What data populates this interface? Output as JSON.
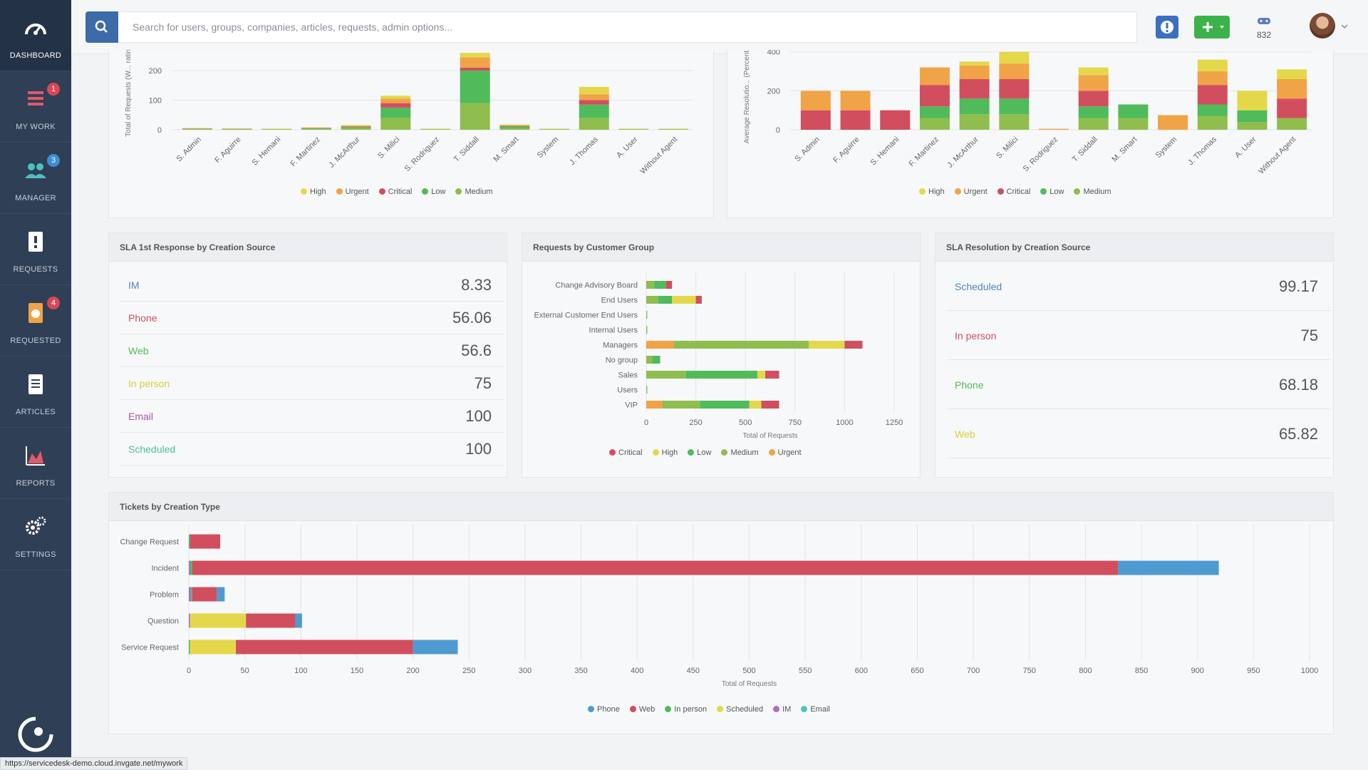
{
  "sidebar": {
    "items": [
      {
        "label": "DASHBOARD",
        "icon": "dashboard-gauge-icon",
        "badge": ""
      },
      {
        "label": "MY WORK",
        "icon": "list-icon",
        "badge": "1"
      },
      {
        "label": "MANAGER",
        "icon": "people-icon",
        "badge": "3"
      },
      {
        "label": "REQUESTS",
        "icon": "requests-doc-icon",
        "badge": ""
      },
      {
        "label": "REQUESTED",
        "icon": "requested-doc-icon",
        "badge": "4"
      },
      {
        "label": "ARTICLES",
        "icon": "articles-doc-icon",
        "badge": ""
      },
      {
        "label": "REPORTS",
        "icon": "reports-chart-icon",
        "badge": ""
      },
      {
        "label": "SETTINGS",
        "icon": "gears-icon",
        "badge": ""
      }
    ]
  },
  "topbar": {
    "search_placeholder": "Search for users, groups, companies, articles, requests, admin options...",
    "points": "832"
  },
  "colors": {
    "critical": "#d14e5e",
    "high": "#e4d84a",
    "urgent": "#f0a347",
    "low": "#4fbb5a",
    "medium": "#8fbd4e",
    "phone": "#4f9ad0",
    "web": "#d14e5e",
    "in_person": "#4fbb5a",
    "scheduled": "#e4d84a",
    "im": "#a86fc2",
    "email": "#4fc1c1"
  },
  "chart_top_left": {
    "type": "bar",
    "ylabel": "Total of Requests (W... rating)",
    "yticks": [
      "200",
      "100",
      "0"
    ],
    "ymax": 270,
    "categories": [
      "S. Admin",
      "F. Aguirre",
      "S. Hemani",
      "F. Martinez",
      "J. McArthur",
      "S. Milici",
      "S. Rodriguez",
      "T. Siddall",
      "M. Smart",
      "System",
      "J. Thomas",
      "A. User",
      "Without Agent"
    ],
    "series": [
      {
        "name": "Medium",
        "color": "#8fbd4e",
        "values": [
          2,
          1,
          1,
          3,
          5,
          40,
          1,
          90,
          5,
          1,
          40,
          1,
          1
        ]
      },
      {
        "name": "Low",
        "color": "#4fbb5a",
        "values": [
          1,
          1,
          1,
          2,
          4,
          35,
          1,
          110,
          6,
          1,
          45,
          1,
          1
        ]
      },
      {
        "name": "Critical",
        "color": "#d14e5e",
        "values": [
          1,
          1,
          0,
          1,
          2,
          15,
          0,
          10,
          2,
          0,
          15,
          0,
          0
        ]
      },
      {
        "name": "Urgent",
        "color": "#f0a347",
        "values": [
          1,
          1,
          1,
          1,
          2,
          15,
          1,
          35,
          2,
          1,
          20,
          1,
          1
        ]
      },
      {
        "name": "High",
        "color": "#e4d84a",
        "values": [
          1,
          1,
          1,
          1,
          3,
          10,
          1,
          15,
          3,
          1,
          25,
          1,
          1
        ]
      }
    ],
    "legend": [
      "High",
      "Urgent",
      "Critical",
      "Low",
      "Medium"
    ]
  },
  "chart_top_right": {
    "type": "bar",
    "ylabel": "Average Resolutio... (Percentage)",
    "yticks": [
      "400",
      "200",
      "0"
    ],
    "ymax": 410,
    "categories": [
      "S. Admin",
      "F. Aguirre",
      "S. Hemani",
      "F. Martinez",
      "J. McArthur",
      "S. Milici",
      "S. Rodriguez",
      "T. Siddall",
      "M. Smart",
      "System",
      "J. Thomas",
      "A. User",
      "Without Agent"
    ],
    "series": [
      {
        "name": "Medium",
        "color": "#8fbd4e",
        "values": [
          0,
          0,
          0,
          60,
          80,
          80,
          0,
          60,
          60,
          0,
          70,
          40,
          60
        ]
      },
      {
        "name": "Low",
        "color": "#4fbb5a",
        "values": [
          0,
          0,
          0,
          60,
          80,
          80,
          0,
          60,
          70,
          0,
          60,
          60,
          0
        ]
      },
      {
        "name": "Critical",
        "color": "#d14e5e",
        "values": [
          100,
          100,
          100,
          110,
          100,
          100,
          0,
          80,
          0,
          0,
          100,
          0,
          100
        ]
      },
      {
        "name": "Urgent",
        "color": "#f0a347",
        "values": [
          100,
          100,
          0,
          90,
          70,
          80,
          5,
          80,
          0,
          75,
          70,
          0,
          100
        ]
      },
      {
        "name": "High",
        "color": "#e4d84a",
        "values": [
          0,
          0,
          0,
          0,
          20,
          60,
          0,
          40,
          0,
          0,
          60,
          100,
          50
        ]
      }
    ],
    "legend": [
      "High",
      "Urgent",
      "Critical",
      "Low",
      "Medium"
    ]
  },
  "sla_first": {
    "title": "SLA 1st Response by Creation Source",
    "rows": [
      {
        "name": "IM",
        "value": "8.33",
        "color": "#4f86b8"
      },
      {
        "name": "Phone",
        "value": "56.06",
        "color": "#d14e5e"
      },
      {
        "name": "Web",
        "value": "56.6",
        "color": "#4fbb5a"
      },
      {
        "name": "In person",
        "value": "75",
        "color": "#d9cf3a"
      },
      {
        "name": "Email",
        "value": "100",
        "color": "#a25aa8"
      },
      {
        "name": "Scheduled",
        "value": "100",
        "color": "#4fbba0"
      }
    ]
  },
  "customer_group": {
    "title": "Requests by Customer Group",
    "type": "bar",
    "xlabel": "Total of Requests",
    "xticks": [
      0,
      250,
      500,
      750,
      1000,
      1250
    ],
    "xmax": 1250,
    "categories": [
      "Change Advisory Board",
      "End Users",
      "External Customer End Users",
      "Internal Users",
      "Managers",
      "No group",
      "Sales",
      "Users",
      "VIP"
    ],
    "series": [
      {
        "name": "Urgent",
        "color": "#f0a347",
        "values": [
          0,
          0,
          0,
          0,
          140,
          0,
          0,
          0,
          80
        ]
      },
      {
        "name": "Medium",
        "color": "#8fbd4e",
        "values": [
          40,
          60,
          3,
          3,
          680,
          30,
          200,
          3,
          190
        ]
      },
      {
        "name": "Low",
        "color": "#4fbb5a",
        "values": [
          60,
          70,
          2,
          2,
          0,
          40,
          360,
          2,
          250
        ]
      },
      {
        "name": "High",
        "color": "#e4d84a",
        "values": [
          0,
          120,
          0,
          0,
          180,
          0,
          40,
          0,
          60
        ]
      },
      {
        "name": "Critical",
        "color": "#d14e5e",
        "values": [
          30,
          30,
          0,
          0,
          90,
          0,
          70,
          0,
          90
        ]
      }
    ],
    "legend": [
      "Critical",
      "High",
      "Low",
      "Medium",
      "Urgent"
    ]
  },
  "sla_resolution": {
    "title": "SLA Resolution by Creation Source",
    "rows": [
      {
        "name": "Scheduled",
        "value": "99.17",
        "color": "#4f86b8"
      },
      {
        "name": "In person",
        "value": "75",
        "color": "#d14e5e"
      },
      {
        "name": "Phone",
        "value": "68.18",
        "color": "#4fbb5a"
      },
      {
        "name": "Web",
        "value": "65.82",
        "color": "#d9cf3a"
      }
    ]
  },
  "tickets_type": {
    "title": "Tickets by Creation Type",
    "type": "bar",
    "xlabel": "Total of Requests",
    "xticks": [
      0,
      50,
      100,
      150,
      200,
      250,
      300,
      350,
      400,
      450,
      500,
      550,
      600,
      650,
      700,
      750,
      800,
      850,
      900,
      950,
      1000
    ],
    "xmax": 1000,
    "categories": [
      "Change Request",
      "Incident",
      "Problem",
      "Question",
      "Service Request"
    ],
    "series": [
      {
        "name": "IM",
        "color": "#a86fc2",
        "values": [
          0,
          1,
          2,
          1,
          0
        ]
      },
      {
        "name": "In person",
        "color": "#4fbb5a",
        "values": [
          1,
          2,
          1,
          0,
          1
        ]
      },
      {
        "name": "Scheduled",
        "color": "#e4d84a",
        "values": [
          0,
          0,
          0,
          50,
          41
        ]
      },
      {
        "name": "Web",
        "color": "#d14e5e",
        "values": [
          27,
          826,
          22,
          44,
          158
        ]
      },
      {
        "name": "Phone",
        "color": "#4f9ad0",
        "values": [
          0,
          90,
          7,
          6,
          40
        ]
      }
    ],
    "legend": [
      "Phone",
      "Web",
      "In person",
      "Scheduled",
      "IM",
      "Email"
    ],
    "legend_colors": [
      "#4f9ad0",
      "#d14e5e",
      "#4fbb5a",
      "#e4d84a",
      "#a86fc2",
      "#4fc1c1"
    ]
  },
  "status_url": "https://servicedesk-demo.cloud.invgate.net/mywork"
}
